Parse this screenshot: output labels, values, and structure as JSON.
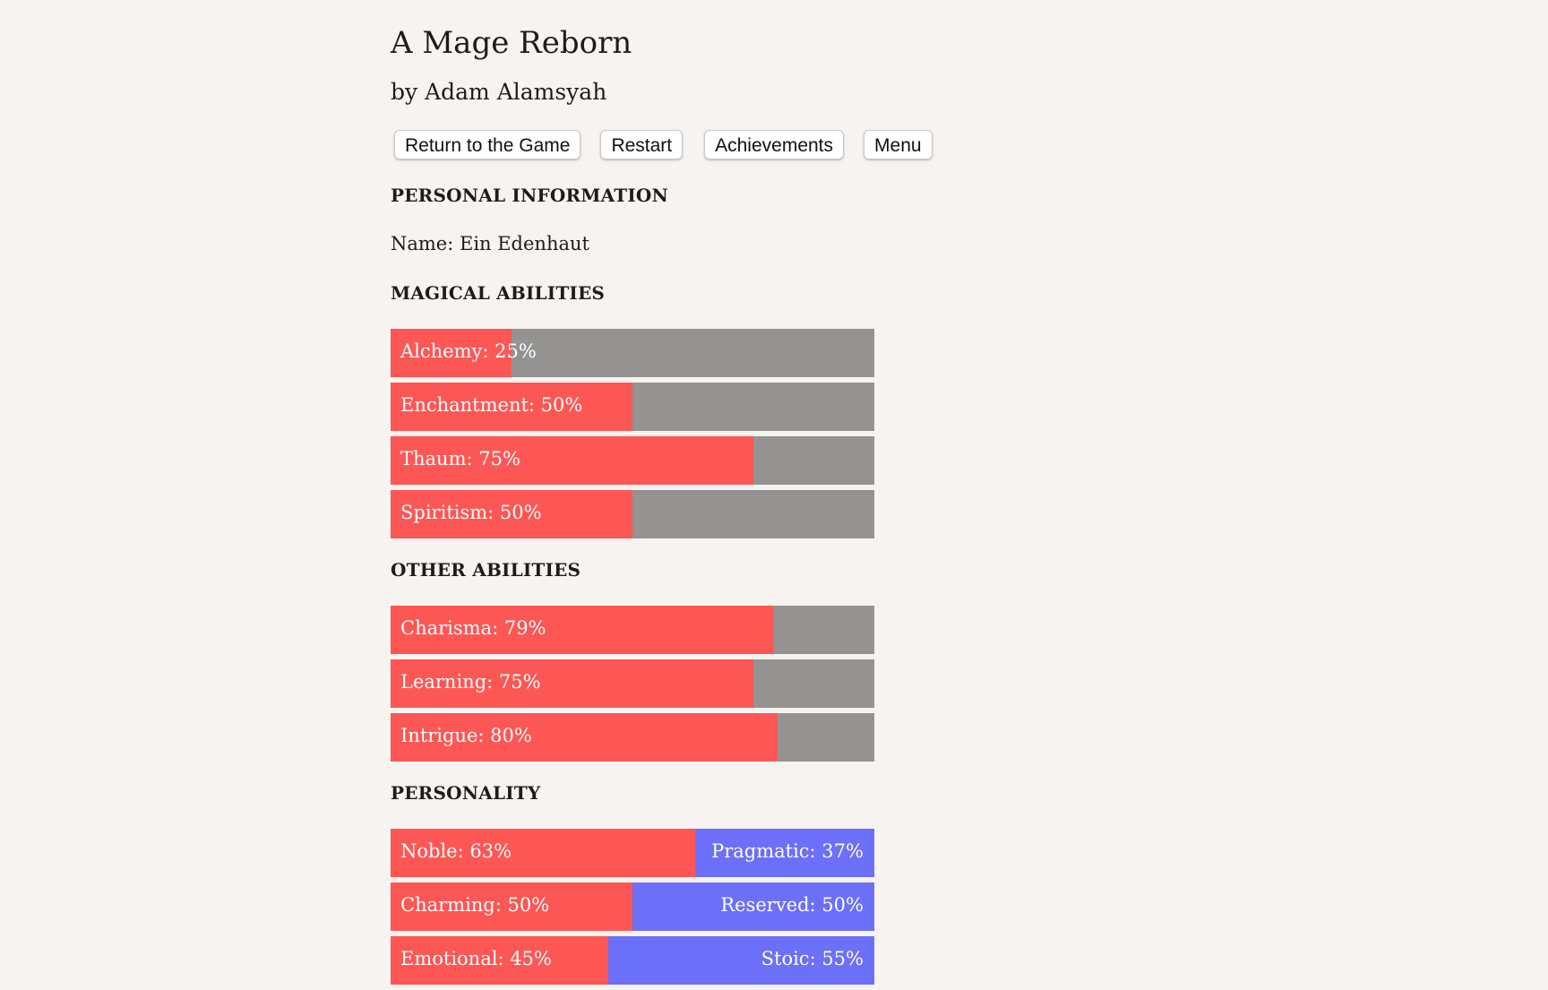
{
  "game": {
    "title": "A Mage Reborn",
    "author": "by Adam Alamsyah"
  },
  "toolbar": {
    "return_label": "Return to the Game",
    "restart_label": "Restart",
    "achievements_label": "Achievements",
    "menu_label": "Menu"
  },
  "colors": {
    "background": "#f7f3f0",
    "fill_red": "#fd5755",
    "track_gray": "#949391",
    "opposed_blue": "#6c6ff8"
  },
  "personal": {
    "heading": "PERSONAL INFORMATION",
    "name_line": "Name: Ein Edenhaut"
  },
  "magical": {
    "heading": "MAGICAL ABILITIES",
    "stats": [
      {
        "label": "Alchemy: 25%",
        "value": 25
      },
      {
        "label": "Enchantment: 50%",
        "value": 50
      },
      {
        "label": "Thaum: 75%",
        "value": 75
      },
      {
        "label": "Spiritism: 50%",
        "value": 50
      }
    ]
  },
  "other": {
    "heading": "OTHER ABILITIES",
    "stats": [
      {
        "label": "Charisma: 79%",
        "value": 79
      },
      {
        "label": "Learning: 75%",
        "value": 75
      },
      {
        "label": "Intrigue: 80%",
        "value": 80
      }
    ]
  },
  "personality": {
    "heading": "PERSONALITY",
    "stats": [
      {
        "left_label": "Noble: 63%",
        "right_label": "Pragmatic: 37%",
        "value": 63
      },
      {
        "left_label": "Charming: 50%",
        "right_label": "Reserved: 50%",
        "value": 50
      },
      {
        "left_label": "Emotional: 45%",
        "right_label": "Stoic: 55%",
        "value": 45
      }
    ]
  }
}
